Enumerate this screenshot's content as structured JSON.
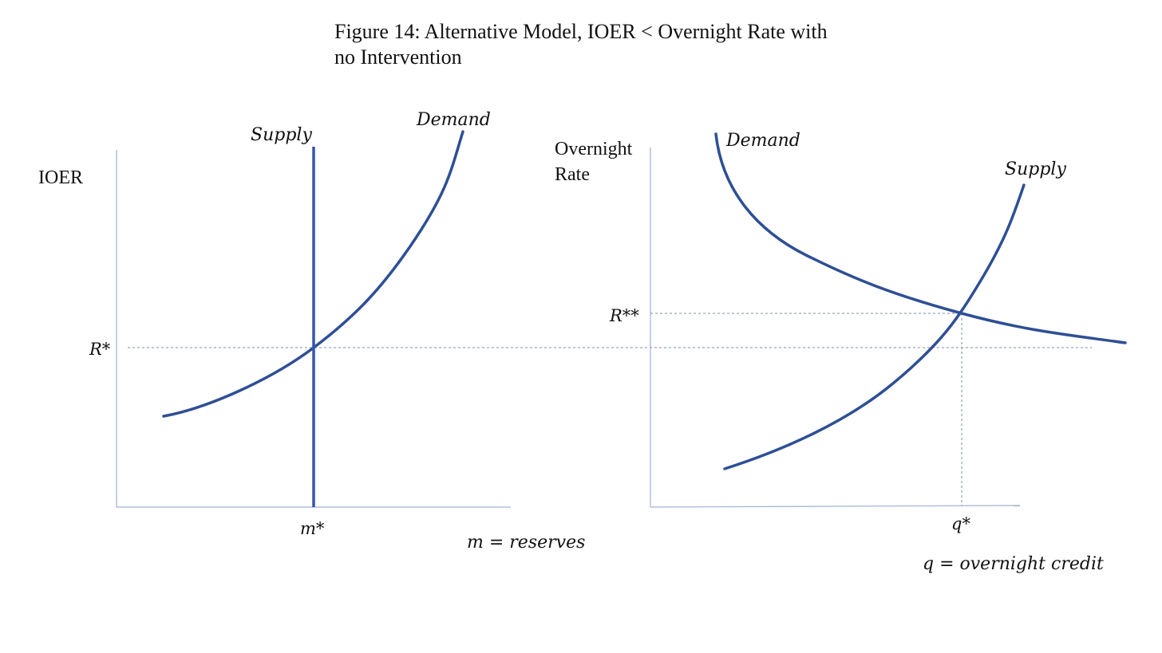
{
  "title_line1": "Figure 14: Alternative Model, IOER < Overnight Rate with",
  "title_line2": "no Intervention",
  "left_panel": {
    "y_label": "IOER",
    "r_star_label": "R*",
    "m_star_label": "m*",
    "x_caption": "m = reserves",
    "supply_label": "Supply",
    "demand_label": "Demand"
  },
  "right_panel": {
    "y_label_line1": "Overnight",
    "y_label_line2": "Rate",
    "r_double_star_label": "R**",
    "q_star_label": "q*",
    "x_caption": "q = overnight credit",
    "demand_label": "Demand",
    "supply_label": "Supply"
  },
  "colors": {
    "curve": "#2e4f96",
    "axis": "#9fb1d6",
    "guide": "#7f8fa8"
  }
}
